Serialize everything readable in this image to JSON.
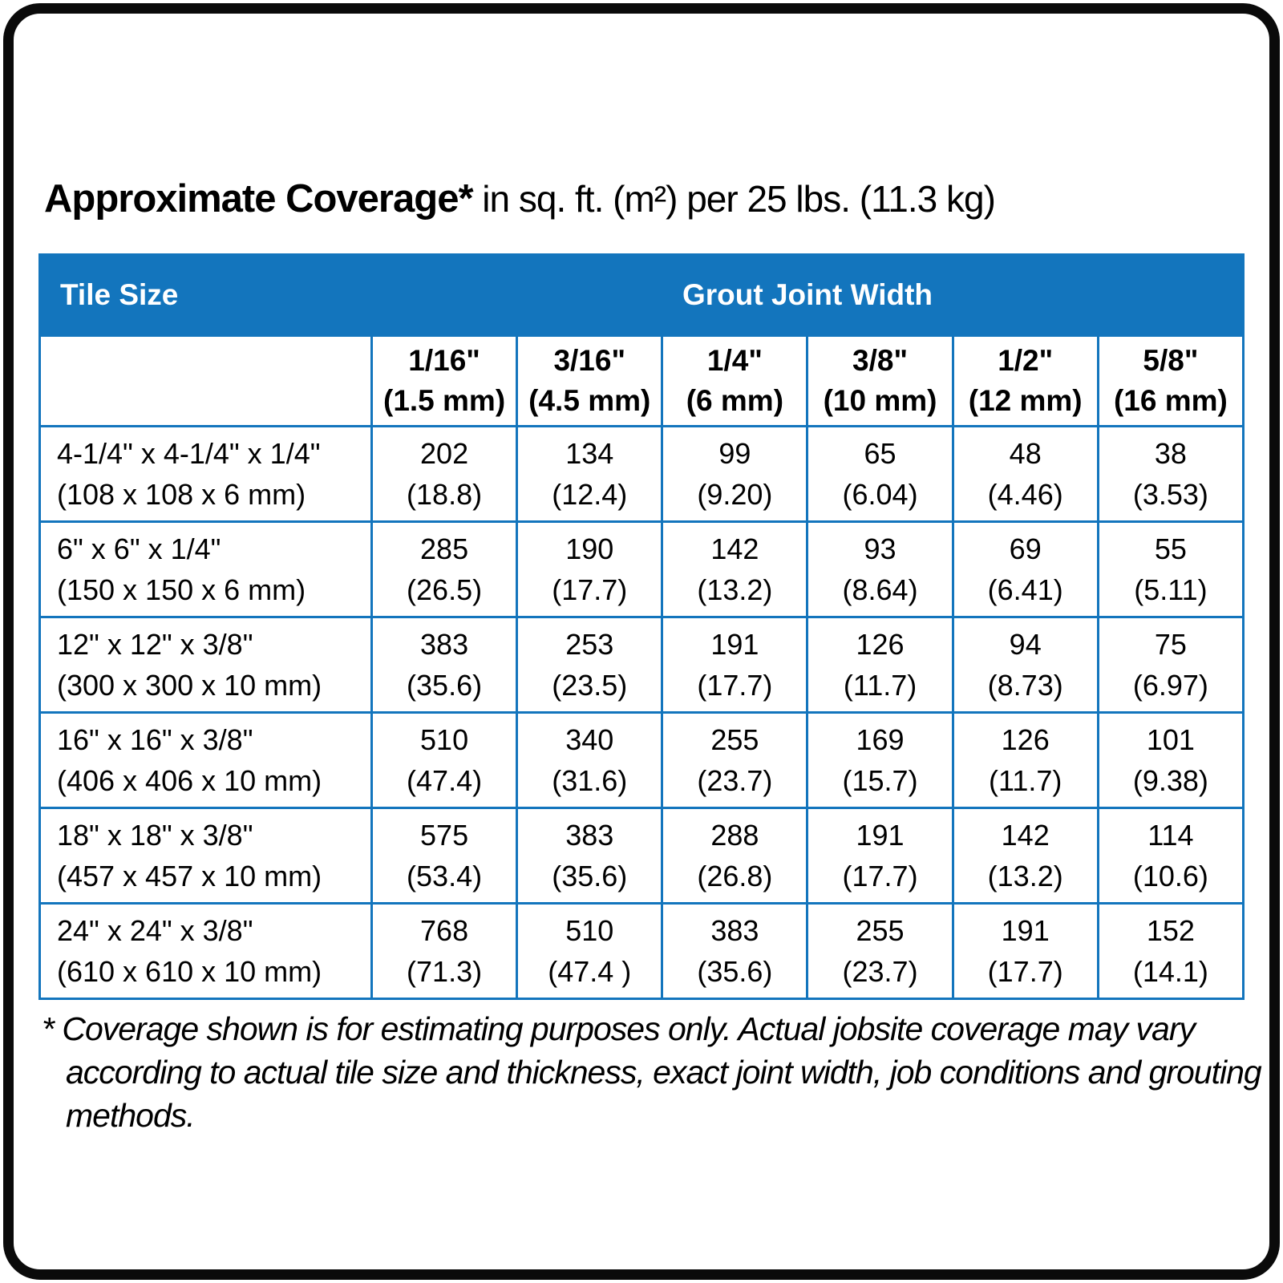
{
  "title": {
    "bold": "Approximate Coverage*",
    "rest": " in sq. ft. (m²) per 25 lbs. (11.3 kg)"
  },
  "footnote": "* Coverage shown is for estimating purposes only. Actual jobsite coverage may vary according to actual tile size and thickness, exact joint width, job conditions and grouting methods.",
  "colors": {
    "header_blue": "#1375bd",
    "header_text": "#ffffff",
    "body_text": "#000000",
    "frame_black": "#0a0a0a"
  },
  "chart_data": {
    "type": "table",
    "title": "Approximate Coverage* in sq. ft. (m²) per 25 lbs. (11.3 kg)",
    "row_group_label": "Tile Size",
    "column_group_label": "Grout Joint Width",
    "columns": [
      {
        "size": "1/16\"",
        "mm": "(1.5 mm)"
      },
      {
        "size": "3/16\"",
        "mm": "(4.5 mm)"
      },
      {
        "size": "1/4\"",
        "mm": "(6 mm)"
      },
      {
        "size": "3/8\"",
        "mm": "(10 mm)"
      },
      {
        "size": "1/2\"",
        "mm": "(12 mm)"
      },
      {
        "size": "5/8\"",
        "mm": "(16 mm)"
      }
    ],
    "rows": [
      {
        "tile": "4-1/4\" x 4-1/4\" x 1/4\"",
        "tile_mm": "(108 x 108 x 6 mm)",
        "cells": [
          {
            "v": "202",
            "m": "(18.8)"
          },
          {
            "v": "134",
            "m": "(12.4)"
          },
          {
            "v": "99",
            "m": "(9.20)"
          },
          {
            "v": "65",
            "m": "(6.04)"
          },
          {
            "v": "48",
            "m": "(4.46)"
          },
          {
            "v": "38",
            "m": "(3.53)"
          }
        ]
      },
      {
        "tile": "6\" x 6\" x 1/4\"",
        "tile_mm": "(150 x 150 x 6 mm)",
        "cells": [
          {
            "v": "285",
            "m": "(26.5)"
          },
          {
            "v": "190",
            "m": "(17.7)"
          },
          {
            "v": "142",
            "m": "(13.2)"
          },
          {
            "v": "93",
            "m": "(8.64)"
          },
          {
            "v": "69",
            "m": "(6.41)"
          },
          {
            "v": "55",
            "m": "(5.11)"
          }
        ]
      },
      {
        "tile": "12\" x 12\" x 3/8\"",
        "tile_mm": "(300 x 300 x 10 mm)",
        "cells": [
          {
            "v": "383",
            "m": "(35.6)"
          },
          {
            "v": "253",
            "m": "(23.5)"
          },
          {
            "v": "191",
            "m": "(17.7)"
          },
          {
            "v": "126",
            "m": "(11.7)"
          },
          {
            "v": "94",
            "m": "(8.73)"
          },
          {
            "v": "75",
            "m": "(6.97)"
          }
        ]
      },
      {
        "tile": "16\" x 16\" x 3/8\"",
        "tile_mm": "(406 x 406 x 10 mm)",
        "cells": [
          {
            "v": "510",
            "m": "(47.4)"
          },
          {
            "v": "340",
            "m": "(31.6)"
          },
          {
            "v": "255",
            "m": "(23.7)"
          },
          {
            "v": "169",
            "m": "(15.7)"
          },
          {
            "v": "126",
            "m": "(11.7)"
          },
          {
            "v": "101",
            "m": "(9.38)"
          }
        ]
      },
      {
        "tile": "18\" x 18\" x 3/8\"",
        "tile_mm": "(457 x 457 x 10 mm)",
        "cells": [
          {
            "v": "575",
            "m": "(53.4)"
          },
          {
            "v": "383",
            "m": "(35.6)"
          },
          {
            "v": "288",
            "m": "(26.8)"
          },
          {
            "v": "191",
            "m": "(17.7)"
          },
          {
            "v": "142",
            "m": "(13.2)"
          },
          {
            "v": "114",
            "m": "(10.6)"
          }
        ]
      },
      {
        "tile": "24\" x 24\" x 3/8\"",
        "tile_mm": "(610 x 610 x 10 mm)",
        "cells": [
          {
            "v": "768",
            "m": "(71.3)"
          },
          {
            "v": "510",
            "m": "(47.4 )"
          },
          {
            "v": "383",
            "m": "(35.6)"
          },
          {
            "v": "255",
            "m": "(23.7)"
          },
          {
            "v": "191",
            "m": "(17.7)"
          },
          {
            "v": "152",
            "m": "(14.1)"
          }
        ]
      }
    ]
  }
}
